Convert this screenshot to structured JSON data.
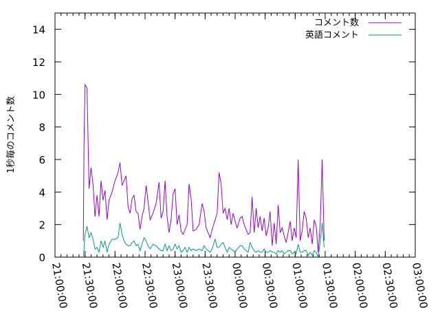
{
  "chart_data": {
    "type": "line",
    "title": "",
    "xlabel": "",
    "ylabel": "1秒毎のコメント数",
    "xlim": [
      "21:00:00",
      "03:00:00"
    ],
    "ylim": [
      0,
      15
    ],
    "x_ticks": [
      "21:00:00",
      "21:30:00",
      "22:00:00",
      "22:30:00",
      "23:00:00",
      "23:30:00",
      "00:00:00",
      "00:30:00",
      "01:00:00",
      "01:30:00",
      "02:00:00",
      "02:30:00",
      "03:00:00"
    ],
    "y_ticks": [
      0,
      2,
      4,
      6,
      8,
      10,
      12,
      14
    ],
    "grid": false,
    "legend": "top-right",
    "series": [
      {
        "name": "コメント数",
        "color": "#9400d3",
        "points": [
          [
            "21:28:20",
            1.0
          ],
          [
            "21:29:00",
            7.0
          ],
          [
            "21:30:00",
            10.6
          ],
          [
            "21:32:00",
            10.4
          ],
          [
            "21:34:00",
            4.2
          ],
          [
            "21:36:00",
            5.5
          ],
          [
            "21:38:00",
            4.5
          ],
          [
            "21:40:00",
            2.5
          ],
          [
            "21:42:00",
            3.8
          ],
          [
            "21:44:00",
            2.5
          ],
          [
            "21:46:00",
            4.7
          ],
          [
            "21:48:00",
            3.5
          ],
          [
            "21:50:00",
            4.1
          ],
          [
            "21:52:00",
            2.3
          ],
          [
            "21:54:00",
            3.5
          ],
          [
            "21:57:00",
            4.0
          ],
          [
            "22:00:00",
            4.7
          ],
          [
            "22:03:00",
            5.2
          ],
          [
            "22:05:00",
            5.8
          ],
          [
            "22:07:00",
            4.4
          ],
          [
            "22:09:00",
            4.7
          ],
          [
            "22:11:00",
            5.0
          ],
          [
            "22:13:00",
            3.1
          ],
          [
            "22:15:00",
            2.7
          ],
          [
            "22:17:00",
            3.6
          ],
          [
            "22:19:00",
            3.8
          ],
          [
            "22:21:00",
            2.8
          ],
          [
            "22:23:00",
            2.7
          ],
          [
            "22:25:00",
            1.7
          ],
          [
            "22:27:00",
            2.5
          ],
          [
            "22:29:00",
            3.0
          ],
          [
            "22:31:00",
            4.4
          ],
          [
            "22:33:00",
            3.4
          ],
          [
            "22:35:00",
            2.3
          ],
          [
            "22:38:00",
            2.7
          ],
          [
            "22:41:00",
            3.3
          ],
          [
            "22:44:00",
            4.6
          ],
          [
            "22:46:00",
            2.4
          ],
          [
            "22:48:00",
            2.8
          ],
          [
            "22:50:00",
            4.7
          ],
          [
            "22:52:00",
            2.5
          ],
          [
            "22:54:00",
            1.5
          ],
          [
            "22:56:00",
            2.3
          ],
          [
            "22:58:00",
            3.9
          ],
          [
            "23:00:00",
            4.2
          ],
          [
            "23:02:00",
            2.0
          ],
          [
            "23:04:00",
            2.6
          ],
          [
            "23:06:00",
            1.6
          ],
          [
            "23:08:00",
            1.4
          ],
          [
            "23:10:00",
            1.7
          ],
          [
            "23:12:00",
            2.0
          ],
          [
            "23:14:00",
            4.5
          ],
          [
            "23:16:00",
            3.6
          ],
          [
            "23:18:00",
            1.6
          ],
          [
            "23:21:00",
            1.7
          ],
          [
            "23:24:00",
            2.0
          ],
          [
            "23:27:00",
            3.3
          ],
          [
            "23:29:00",
            2.8
          ],
          [
            "23:31:00",
            1.8
          ],
          [
            "23:33:00",
            1.5
          ],
          [
            "23:35:00",
            1.2
          ],
          [
            "23:37:00",
            1.7
          ],
          [
            "23:40:00",
            2.3
          ],
          [
            "23:42:00",
            2.7
          ],
          [
            "23:44:00",
            5.2
          ],
          [
            "23:46:00",
            4.5
          ],
          [
            "23:48:00",
            2.7
          ],
          [
            "23:50:00",
            3.0
          ],
          [
            "23:52:00",
            2.3
          ],
          [
            "23:54:00",
            3.0
          ],
          [
            "23:56:00",
            2.0
          ],
          [
            "23:58:00",
            2.7
          ],
          [
            "00:00:00",
            2.2
          ],
          [
            "00:02:00",
            1.8
          ],
          [
            "00:05:00",
            2.4
          ],
          [
            "00:07:00",
            2.5
          ],
          [
            "00:09:00",
            2.0
          ],
          [
            "00:11:00",
            1.7
          ],
          [
            "00:13:00",
            1.4
          ],
          [
            "00:15:00",
            1.5
          ],
          [
            "00:17:00",
            3.7
          ],
          [
            "00:19:00",
            1.5
          ],
          [
            "00:21:00",
            3.0
          ],
          [
            "00:23:00",
            1.8
          ],
          [
            "00:25:00",
            2.5
          ],
          [
            "00:27:00",
            1.6
          ],
          [
            "00:29:00",
            2.4
          ],
          [
            "00:31:00",
            1.3
          ],
          [
            "00:33:00",
            1.8
          ],
          [
            "00:35:00",
            2.8
          ],
          [
            "00:37:00",
            0.7
          ],
          [
            "00:39:00",
            2.1
          ],
          [
            "00:41:00",
            0.8
          ],
          [
            "00:43:00",
            3.2
          ],
          [
            "00:45:00",
            1.5
          ],
          [
            "00:47:00",
            1.8
          ],
          [
            "00:49:00",
            1.3
          ],
          [
            "00:51:00",
            0.9
          ],
          [
            "00:53:00",
            1.5
          ],
          [
            "00:55:00",
            2.2
          ],
          [
            "00:57:00",
            1.0
          ],
          [
            "00:59:00",
            1.8
          ],
          [
            "01:01:00",
            1.2
          ],
          [
            "01:03:00",
            6.0
          ],
          [
            "01:05:00",
            1.0
          ],
          [
            "01:07:00",
            1.6
          ],
          [
            "01:09:00",
            2.8
          ],
          [
            "01:11:00",
            2.4
          ],
          [
            "01:13:00",
            1.2
          ],
          [
            "01:15:00",
            1.8
          ],
          [
            "01:17:00",
            0.8
          ],
          [
            "01:19:00",
            2.3
          ],
          [
            "01:21:00",
            1.9
          ],
          [
            "01:23:00",
            0.3
          ],
          [
            "01:25:00",
            2.0
          ],
          [
            "01:27:00",
            6.0
          ],
          [
            "01:29:00",
            1.0
          ]
        ]
      },
      {
        "name": "英語コメント",
        "color": "#009e73",
        "points": [
          [
            "21:28:20",
            0.0
          ],
          [
            "21:30:00",
            1.4
          ],
          [
            "21:32:00",
            1.9
          ],
          [
            "21:34:00",
            1.2
          ],
          [
            "21:36:00",
            1.5
          ],
          [
            "21:38:00",
            1.1
          ],
          [
            "21:40:00",
            0.5
          ],
          [
            "21:42:00",
            0.6
          ],
          [
            "21:44:00",
            0.3
          ],
          [
            "21:46:00",
            1.0
          ],
          [
            "21:48:00",
            0.6
          ],
          [
            "21:50:00",
            1.0
          ],
          [
            "21:52:00",
            0.3
          ],
          [
            "21:54:00",
            0.8
          ],
          [
            "21:57:00",
            1.1
          ],
          [
            "22:00:00",
            1.1
          ],
          [
            "22:03:00",
            1.2
          ],
          [
            "22:05:00",
            2.1
          ],
          [
            "22:07:00",
            1.4
          ],
          [
            "22:09:00",
            1.0
          ],
          [
            "22:11:00",
            0.8
          ],
          [
            "22:13:00",
            0.7
          ],
          [
            "22:15:00",
            0.7
          ],
          [
            "22:17:00",
            0.9
          ],
          [
            "22:19:00",
            1.0
          ],
          [
            "22:21:00",
            0.7
          ],
          [
            "22:23:00",
            0.8
          ],
          [
            "22:25:00",
            0.4
          ],
          [
            "22:27:00",
            0.8
          ],
          [
            "22:29:00",
            1.2
          ],
          [
            "22:31:00",
            1.0
          ],
          [
            "22:33:00",
            0.7
          ],
          [
            "22:35:00",
            0.5
          ],
          [
            "22:38:00",
            0.8
          ],
          [
            "22:41:00",
            0.7
          ],
          [
            "22:44:00",
            0.5
          ],
          [
            "22:46:00",
            0.4
          ],
          [
            "22:48:00",
            0.4
          ],
          [
            "22:50:00",
            0.8
          ],
          [
            "22:52:00",
            0.4
          ],
          [
            "22:54:00",
            0.7
          ],
          [
            "22:56:00",
            0.4
          ],
          [
            "22:58:00",
            0.5
          ],
          [
            "23:00:00",
            0.8
          ],
          [
            "23:02:00",
            0.5
          ],
          [
            "23:04:00",
            0.7
          ],
          [
            "23:06:00",
            0.3
          ],
          [
            "23:08:00",
            0.4
          ],
          [
            "23:10:00",
            0.6
          ],
          [
            "23:12:00",
            0.3
          ],
          [
            "23:14:00",
            0.6
          ],
          [
            "23:16:00",
            0.4
          ],
          [
            "23:18:00",
            0.5
          ],
          [
            "23:21:00",
            0.4
          ],
          [
            "23:24:00",
            0.5
          ],
          [
            "23:27:00",
            0.4
          ],
          [
            "23:29:00",
            0.7
          ],
          [
            "23:31:00",
            0.5
          ],
          [
            "23:33:00",
            0.4
          ],
          [
            "23:35:00",
            0.3
          ],
          [
            "23:37:00",
            0.5
          ],
          [
            "23:40:00",
            1.1
          ],
          [
            "23:42:00",
            0.6
          ],
          [
            "23:44:00",
            0.6
          ],
          [
            "23:46:00",
            0.8
          ],
          [
            "23:48:00",
            0.9
          ],
          [
            "23:50:00",
            0.6
          ],
          [
            "23:52:00",
            0.3
          ],
          [
            "23:54:00",
            0.6
          ],
          [
            "23:56:00",
            0.5
          ],
          [
            "23:58:00",
            0.4
          ],
          [
            "00:00:00",
            0.3
          ],
          [
            "00:02:00",
            0.5
          ],
          [
            "00:05:00",
            0.7
          ],
          [
            "00:07:00",
            0.7
          ],
          [
            "00:09:00",
            0.5
          ],
          [
            "00:11:00",
            0.4
          ],
          [
            "00:13:00",
            0.3
          ],
          [
            "00:15:00",
            0.9
          ],
          [
            "00:17:00",
            0.6
          ],
          [
            "00:19:00",
            0.4
          ],
          [
            "00:21:00",
            0.3
          ],
          [
            "00:23:00",
            0.4
          ],
          [
            "00:25:00",
            0.3
          ],
          [
            "00:27:00",
            0.3
          ],
          [
            "00:29:00",
            0.5
          ],
          [
            "00:31:00",
            0.3
          ],
          [
            "00:33:00",
            0.3
          ],
          [
            "00:35:00",
            0.4
          ],
          [
            "00:37:00",
            0.3
          ],
          [
            "00:39:00",
            0.3
          ],
          [
            "00:41:00",
            0.2
          ],
          [
            "00:43:00",
            0.4
          ],
          [
            "00:45:00",
            0.3
          ],
          [
            "00:47:00",
            0.4
          ],
          [
            "00:49:00",
            0.2
          ],
          [
            "00:51:00",
            0.3
          ],
          [
            "00:53:00",
            0.4
          ],
          [
            "00:55:00",
            0.4
          ],
          [
            "00:57:00",
            0.2
          ],
          [
            "00:59:00",
            0.3
          ],
          [
            "01:01:00",
            0.2
          ],
          [
            "01:03:00",
            0.8
          ],
          [
            "01:05:00",
            0.3
          ],
          [
            "01:07:00",
            0.3
          ],
          [
            "01:09:00",
            0.4
          ],
          [
            "01:11:00",
            0.4
          ],
          [
            "01:13:00",
            0.1
          ],
          [
            "01:15:00",
            0.3
          ],
          [
            "01:17:00",
            0.1
          ],
          [
            "01:19:00",
            0.4
          ],
          [
            "01:21:00",
            0.3
          ],
          [
            "01:23:00",
            0.0
          ],
          [
            "01:25:00",
            0.9
          ],
          [
            "01:27:00",
            2.1
          ],
          [
            "01:29:00",
            0.6
          ]
        ]
      }
    ]
  }
}
